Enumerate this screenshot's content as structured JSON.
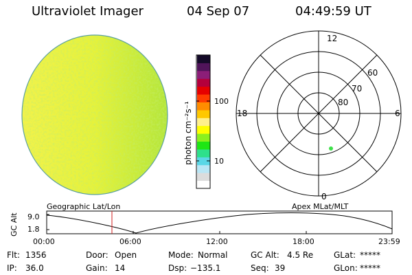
{
  "header": {
    "instrument": "Ultraviolet Imager",
    "date": "04 Sep 07",
    "time": "04:49:59 UT"
  },
  "colorbar": {
    "unit_label": "photon cm⁻²s⁻¹",
    "ticks": [
      "100",
      "10"
    ],
    "colors": [
      "#ffffff",
      "#dcdcdc",
      "#b9e6f5",
      "#5ad7e6",
      "#2ee08c",
      "#1ee614",
      "#8cf01e",
      "#ffff00",
      "#fff08c",
      "#ffc800",
      "#ff8c00",
      "#ff3c00",
      "#e60000",
      "#b4003c",
      "#8c1e78",
      "#50145a",
      "#140a28"
    ]
  },
  "polar_plot": {
    "mlt_labels": {
      "top": "12",
      "left": "18",
      "right": "6",
      "bottom": "0"
    },
    "lat_labels": [
      "60",
      "70",
      "80"
    ]
  },
  "timeline": {
    "left_title": "Geographic Lat/Lon",
    "right_title": "Apex MLat/MLT",
    "axis_label": "GC Alt",
    "y_ticks": [
      "9.0",
      "1.8"
    ],
    "x_ticks": [
      "00:00",
      "06:00",
      "12:00",
      "18:00",
      "23:59"
    ]
  },
  "footer": {
    "flt_label": "Flt:",
    "flt_value": "1356",
    "door_label": "Door:",
    "door_value": "Open",
    "mode_label": "Mode:",
    "mode_value": "Normal",
    "gcalt_label": "GC Alt:",
    "gcalt_value": "4.5 Re",
    "glat_label": "GLat:",
    "glat_value": "*****",
    "ip_label": "IP:",
    "ip_value": "36.0",
    "gain_label": "Gain:",
    "gain_value": "14",
    "dsp_label": "Dsp:",
    "dsp_value": "−135.1",
    "seq_label": "Seq:",
    "seq_value": "39",
    "glon_label": "GLon:",
    "glon_value": "*****"
  }
}
